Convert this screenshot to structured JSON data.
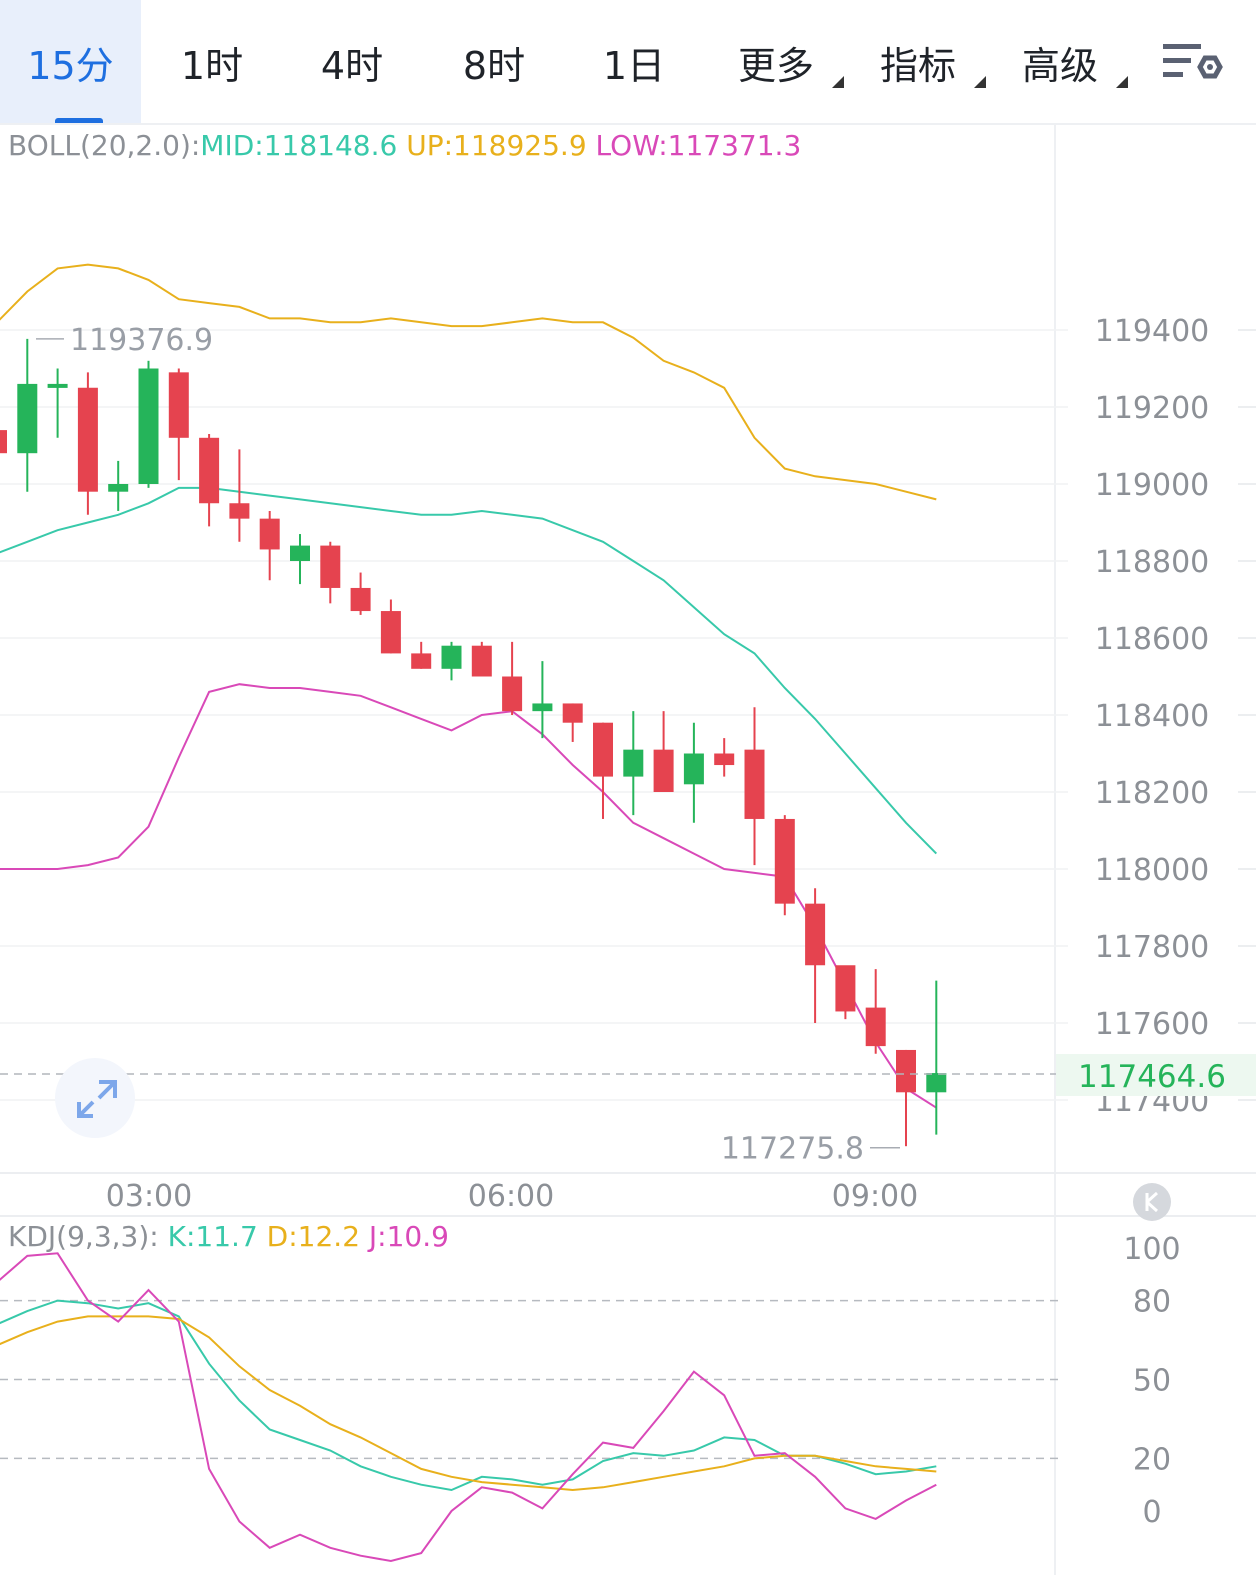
{
  "tabs": [
    {
      "label": "15分",
      "active": true
    },
    {
      "label": "1时"
    },
    {
      "label": "4时"
    },
    {
      "label": "8时"
    },
    {
      "label": "1日"
    },
    {
      "label": "更多",
      "dropdown": true
    },
    {
      "label": "指标",
      "dropdown": true
    },
    {
      "label": "高级",
      "dropdown": true
    }
  ],
  "icons": {
    "toggle": "settings-toggle-icon",
    "expand": "expand-arrows-icon",
    "kline": "k-badge-icon"
  },
  "boll": {
    "name": "BOLL(20,2.0):",
    "mid": "MID:118148.6",
    "up": "UP:118925.9",
    "low": "LOW:117371.3"
  },
  "kdj": {
    "name": "KDJ(9,3,3):",
    "k": "K:11.7",
    "d": "D:12.2",
    "j": "J:10.9"
  },
  "colors": {
    "up": "#25b45a",
    "down": "#e5434f",
    "mid": "#38c9aa",
    "upper": "#e8b01c",
    "lower": "#d949b8",
    "accent": "#1e6fe0"
  },
  "chart_data": [
    {
      "type": "candlestick",
      "title": "BOLL(20,2.0)",
      "x_labels": [
        "03:00",
        "06:00",
        "09:00"
      ],
      "y_ticks": [
        119400,
        119200,
        119000,
        118800,
        118600,
        118400,
        118200,
        118000,
        117800,
        117600,
        117400
      ],
      "ylim": [
        117200,
        119600
      ],
      "high_marker": "119376.9",
      "low_marker": "117275.8",
      "current_price": "117464.6",
      "candles": [
        {
          "o": 119140,
          "h": 119140,
          "l": 119080,
          "c": 119080
        },
        {
          "o": 119080,
          "h": 119377,
          "l": 118980,
          "c": 119260
        },
        {
          "o": 119250,
          "h": 119300,
          "l": 119120,
          "c": 119260
        },
        {
          "o": 119250,
          "h": 119290,
          "l": 118920,
          "c": 118980
        },
        {
          "o": 118980,
          "h": 119060,
          "l": 118930,
          "c": 119000
        },
        {
          "o": 119000,
          "h": 119320,
          "l": 118990,
          "c": 119300
        },
        {
          "o": 119290,
          "h": 119300,
          "l": 119010,
          "c": 119120
        },
        {
          "o": 119120,
          "h": 119130,
          "l": 118890,
          "c": 118950
        },
        {
          "o": 118950,
          "h": 119090,
          "l": 118850,
          "c": 118910
        },
        {
          "o": 118910,
          "h": 118930,
          "l": 118750,
          "c": 118830
        },
        {
          "o": 118800,
          "h": 118870,
          "l": 118740,
          "c": 118840
        },
        {
          "o": 118840,
          "h": 118850,
          "l": 118690,
          "c": 118730
        },
        {
          "o": 118730,
          "h": 118770,
          "l": 118660,
          "c": 118670
        },
        {
          "o": 118670,
          "h": 118700,
          "l": 118560,
          "c": 118560
        },
        {
          "o": 118560,
          "h": 118590,
          "l": 118520,
          "c": 118520
        },
        {
          "o": 118520,
          "h": 118590,
          "l": 118490,
          "c": 118580
        },
        {
          "o": 118580,
          "h": 118590,
          "l": 118500,
          "c": 118500
        },
        {
          "o": 118500,
          "h": 118590,
          "l": 118400,
          "c": 118410
        },
        {
          "o": 118410,
          "h": 118540,
          "l": 118340,
          "c": 118430
        },
        {
          "o": 118430,
          "h": 118430,
          "l": 118330,
          "c": 118380
        },
        {
          "o": 118380,
          "h": 118380,
          "l": 118130,
          "c": 118240
        },
        {
          "o": 118240,
          "h": 118410,
          "l": 118140,
          "c": 118310
        },
        {
          "o": 118310,
          "h": 118410,
          "l": 118220,
          "c": 118200
        },
        {
          "o": 118220,
          "h": 118380,
          "l": 118120,
          "c": 118300
        },
        {
          "o": 118300,
          "h": 118340,
          "l": 118240,
          "c": 118270
        },
        {
          "o": 118310,
          "h": 118420,
          "l": 118010,
          "c": 118130
        },
        {
          "o": 118130,
          "h": 118140,
          "l": 117880,
          "c": 117910
        },
        {
          "o": 117910,
          "h": 117950,
          "l": 117600,
          "c": 117750
        },
        {
          "o": 117750,
          "h": 117740,
          "l": 117610,
          "c": 117630
        },
        {
          "o": 117640,
          "h": 117740,
          "l": 117520,
          "c": 117540
        },
        {
          "o": 117530,
          "h": 117530,
          "l": 117280,
          "c": 117420
        },
        {
          "o": 117420,
          "h": 117710,
          "l": 117310,
          "c": 117470
        }
      ],
      "series": [
        {
          "name": "UP",
          "values": [
            119420,
            119500,
            119560,
            119570,
            119560,
            119530,
            119480,
            119470,
            119460,
            119430,
            119430,
            119420,
            119420,
            119430,
            119420,
            119410,
            119410,
            119420,
            119430,
            119420,
            119420,
            119380,
            119320,
            119290,
            119250,
            119120,
            119040,
            119020,
            119010,
            119000,
            118980,
            118960
          ]
        },
        {
          "name": "MID",
          "values": [
            118820,
            118850,
            118880,
            118900,
            118920,
            118950,
            118990,
            118990,
            118980,
            118970,
            118960,
            118950,
            118940,
            118930,
            118920,
            118920,
            118930,
            118920,
            118910,
            118880,
            118850,
            118800,
            118750,
            118680,
            118610,
            118560,
            118470,
            118390,
            118300,
            118210,
            118120,
            118040
          ]
        },
        {
          "name": "LOW",
          "values": [
            118000,
            118000,
            118000,
            118010,
            118030,
            118110,
            118290,
            118460,
            118480,
            118470,
            118470,
            118460,
            118450,
            118420,
            118390,
            118360,
            118400,
            118410,
            118350,
            118270,
            118200,
            118120,
            118080,
            118040,
            118000,
            117990,
            117980,
            117850,
            117700,
            117550,
            117430,
            117380
          ]
        }
      ]
    },
    {
      "type": "line",
      "title": "KDJ(9,3,3)",
      "y_ticks": [
        100,
        80,
        50,
        20,
        0
      ],
      "ylim": [
        -10,
        115
      ],
      "series": [
        {
          "name": "K",
          "values": [
            71,
            76,
            80,
            79,
            77,
            79,
            74,
            56,
            42,
            31,
            27,
            23,
            17,
            13,
            10,
            8,
            13,
            12,
            10,
            12,
            19,
            22,
            21,
            23,
            28,
            27,
            21,
            21,
            18,
            14,
            15,
            17
          ]
        },
        {
          "name": "D",
          "values": [
            63,
            68,
            72,
            74,
            74,
            74,
            73,
            66,
            55,
            46,
            40,
            33,
            28,
            22,
            16,
            13,
            11,
            10,
            9,
            8,
            9,
            11,
            13,
            15,
            17,
            20,
            21,
            21,
            19,
            17,
            16,
            15
          ]
        },
        {
          "name": "J",
          "values": [
            87,
            97,
            98,
            80,
            72,
            84,
            72,
            16,
            -4,
            -14,
            -9,
            -14,
            -17,
            -19,
            -16,
            0,
            9,
            7,
            1,
            14,
            26,
            24,
            38,
            53,
            44,
            21,
            22,
            13,
            1,
            -3,
            4,
            10
          ]
        }
      ]
    }
  ]
}
